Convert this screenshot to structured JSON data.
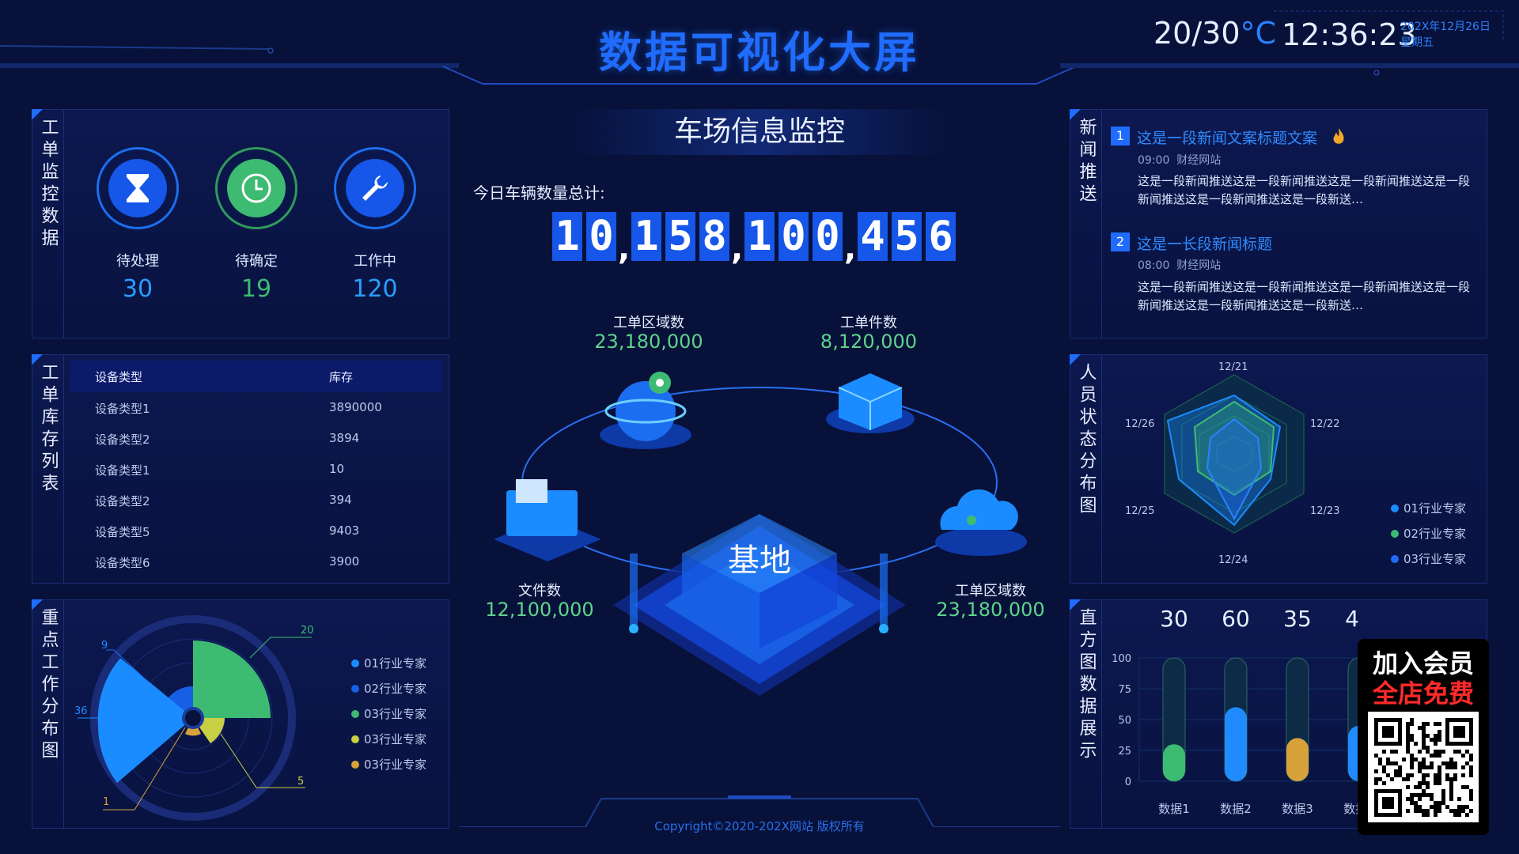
{
  "header": {
    "title": "数据可视化大屏",
    "temperature": "20/30",
    "temp_unit": "°C",
    "time": "12:36:23",
    "date": "202X年12月26日",
    "weekday": "星期五"
  },
  "work_order_monitor": {
    "title": "工单监控数据",
    "stats": [
      {
        "label": "待处理",
        "value": "30",
        "icon": "hourglass-icon",
        "color": "#2a82ff"
      },
      {
        "label": "待确定",
        "value": "19",
        "icon": "clock-icon",
        "color": "#3dbb72"
      },
      {
        "label": "工作中",
        "value": "120",
        "icon": "wrench-icon",
        "color": "#2a82ff"
      }
    ]
  },
  "inventory": {
    "title": "工单库存列表",
    "columns": [
      "设备类型",
      "库存"
    ],
    "rows": [
      [
        "设备类型1",
        "3890000"
      ],
      [
        "设备类型2",
        "3894"
      ],
      [
        "设备类型1",
        "10"
      ],
      [
        "设备类型2",
        "394"
      ],
      [
        "设备类型5",
        "9403"
      ],
      [
        "设备类型6",
        "3900"
      ]
    ]
  },
  "key_work": {
    "title": "重点工作分布图",
    "labels": [
      "9",
      "20",
      "36",
      "5",
      "1"
    ],
    "legend": [
      {
        "name": "01行业专家",
        "color": "#1b8cff"
      },
      {
        "name": "02行业专家",
        "color": "#1760e6"
      },
      {
        "name": "03行业专家",
        "color": "#3dbb72"
      },
      {
        "name": "03行业专家",
        "color": "#c9cf45"
      },
      {
        "name": "03行业专家",
        "color": "#d8a23a"
      }
    ]
  },
  "center": {
    "title": "车场信息监控",
    "count_label": "今日车辆数量总计:",
    "digits": [
      "1",
      "0",
      "1",
      "5",
      "8",
      "1",
      "0",
      "0",
      "4",
      "5",
      "6"
    ],
    "base_label": "基地",
    "metrics": [
      {
        "label": "工单区域数",
        "value": "23,180,000"
      },
      {
        "label": "工单件数",
        "value": "8,120,000"
      },
      {
        "label": "文件数",
        "value": "12,100,000"
      },
      {
        "label": "工单区域数",
        "value": "23,180,000"
      }
    ],
    "copyright": "Copyright©2020-202X网站 版权所有"
  },
  "news": {
    "title": "新闻推送",
    "items": [
      {
        "num": "1",
        "title": "这是一段新闻文案标题文案",
        "time": "09:00",
        "source": "财经网站",
        "body": "这是一段新闻推送这是一段新闻推送这是一段新闻推送这是一段新闻推送这是一段新闻推送这是一段新送…"
      },
      {
        "num": "2",
        "title": "这是一长段新闻标题",
        "time": "08:00",
        "source": "财经网站",
        "body": "这是一段新闻推送这是一段新闻推送这是一段新闻推送这是一段新闻推送这是一段新闻推送这是一段新送…"
      }
    ]
  },
  "personnel": {
    "title": "人员状态分布图",
    "axes": [
      "12/21",
      "12/22",
      "12/23",
      "12/24",
      "12/25",
      "12/26"
    ],
    "legend": [
      {
        "name": "01行业专家",
        "color": "#1b8cff"
      },
      {
        "name": "02行业专家",
        "color": "#3dbb72"
      },
      {
        "name": "03行业专家",
        "color": "#1f6cff"
      }
    ]
  },
  "histogram": {
    "title": "直方图数据展示",
    "chart_data": {
      "type": "bar",
      "categories": [
        "数据1",
        "数据2",
        "数据3",
        "数据4"
      ],
      "values": [
        30,
        60,
        35,
        45
      ],
      "ylim": [
        0,
        100
      ],
      "yticks": [
        "100",
        "75",
        "50",
        "25",
        "0"
      ],
      "colors": [
        "#3dbb72",
        "#1f8bff",
        "#d8a23a",
        "#1f8bff"
      ]
    }
  },
  "promo": {
    "line1": "加入会员",
    "line2": "全店免费"
  }
}
